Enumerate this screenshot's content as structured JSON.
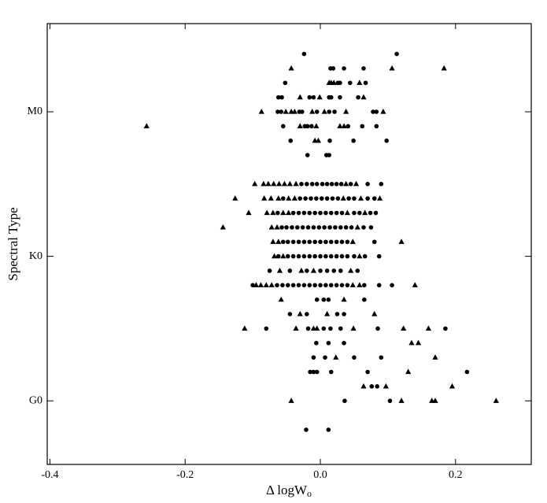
{
  "chart_data": {
    "type": "scatter",
    "x_label": "Δ logW",
    "x_label_subscript": "o",
    "y_label": "Spectral Type",
    "xlim": [
      -0.404,
      0.312
    ],
    "ylim": [
      -4.4,
      26.1
    ],
    "xticks": [
      -0.4,
      -0.2,
      {
        "value": 0,
        "label": "0.0"
      },
      0.2
    ],
    "yticks": [
      {
        "value": 0,
        "label": "G0"
      },
      {
        "value": 10,
        "label": "K0"
      },
      {
        "value": 20,
        "label": "M0"
      }
    ],
    "series": [
      {
        "marker": "circle",
        "color": "#000000",
        "x": [
          -0.024,
          0.113,
          0.015,
          0.019,
          0.035,
          0.064,
          -0.052,
          0.026,
          0.029,
          0.044,
          0.067,
          -0.062,
          -0.057,
          -0.016,
          -0.01,
          0.013,
          0.016,
          0.029,
          0.056,
          -0.063,
          -0.058,
          -0.031,
          -0.027,
          -0.005,
          0.013,
          0.021,
          0.078,
          0.083,
          -0.055,
          -0.023,
          -0.019,
          -0.013,
          0.041,
          0.062,
          0.083,
          -0.044,
          0.014,
          0.049,
          0.098,
          -0.019,
          0.009,
          0.013,
          -0.028,
          -0.02,
          -0.012,
          -0.005,
          0.003,
          0.01,
          0.017,
          0.024,
          0.031,
          0.045,
          0.07,
          0.09,
          -0.055,
          -0.03,
          -0.022,
          -0.014,
          -0.006,
          0.002,
          0.01,
          0.018,
          0.026,
          0.042,
          0.05,
          0.07,
          0.08,
          -0.063,
          -0.04,
          -0.032,
          -0.024,
          -0.016,
          -0.008,
          0,
          0.008,
          0.016,
          0.024,
          0.032,
          0.05,
          0.058,
          0.074,
          0.082,
          -0.057,
          -0.05,
          -0.042,
          -0.034,
          -0.026,
          -0.018,
          -0.01,
          -0.002,
          0.006,
          0.014,
          0.022,
          0.03,
          0.038,
          0.046,
          0.064,
          0.075,
          -0.055,
          -0.048,
          -0.04,
          -0.032,
          -0.024,
          -0.016,
          -0.008,
          0,
          0.008,
          0.016,
          0.024,
          0.032,
          0.04,
          0.08,
          -0.062,
          -0.048,
          -0.04,
          -0.032,
          -0.024,
          -0.016,
          -0.008,
          0,
          0.008,
          0.016,
          0.024,
          0.032,
          0.04,
          0.05,
          0.066,
          0.087,
          -0.075,
          -0.045,
          -0.02,
          0,
          0.01,
          0.02,
          0.03,
          0.055,
          -0.1,
          -0.064,
          -0.056,
          -0.048,
          -0.04,
          -0.032,
          -0.024,
          -0.016,
          -0.008,
          0,
          0.008,
          0.016,
          0.024,
          0.032,
          0.04,
          0.065,
          0.087,
          0.106,
          -0.005,
          0.005,
          0.012,
          0.065,
          -0.045,
          -0.02,
          0.025,
          0.035,
          -0.08,
          -0.018,
          0.005,
          0.015,
          0.03,
          0.085,
          0.185,
          -0.006,
          0.012,
          0.035,
          -0.01,
          0.007,
          0.05,
          0.09,
          -0.015,
          -0.01,
          -0.005,
          0.016,
          0.07,
          0.217,
          0.076,
          0.084,
          0.036,
          0.103,
          -0.021,
          0.012
        ],
        "y": [
          24,
          24,
          23,
          23,
          23,
          23,
          22,
          22,
          22,
          22,
          22,
          21,
          21,
          21,
          21,
          21,
          21,
          21,
          21,
          20,
          20,
          20,
          20,
          20,
          20,
          20,
          20,
          20,
          19,
          19,
          19,
          19,
          19,
          19,
          19,
          18,
          18,
          18,
          18,
          17,
          17,
          17,
          15,
          15,
          15,
          15,
          15,
          15,
          15,
          15,
          15,
          15,
          15,
          15,
          14,
          14,
          14,
          14,
          14,
          14,
          14,
          14,
          14,
          14,
          14,
          14,
          14,
          13,
          13,
          13,
          13,
          13,
          13,
          13,
          13,
          13,
          13,
          13,
          13,
          13,
          13,
          13,
          12,
          12,
          12,
          12,
          12,
          12,
          12,
          12,
          12,
          12,
          12,
          12,
          12,
          12,
          12,
          12,
          11,
          11,
          11,
          11,
          11,
          11,
          11,
          11,
          11,
          11,
          11,
          11,
          11,
          11,
          10,
          10,
          10,
          10,
          10,
          10,
          10,
          10,
          10,
          10,
          10,
          10,
          10,
          10,
          10,
          10,
          9,
          9,
          9,
          9,
          9,
          9,
          9,
          9,
          8,
          8,
          8,
          8,
          8,
          8,
          8,
          8,
          8,
          8,
          8,
          8,
          8,
          8,
          8,
          8,
          8,
          8,
          7,
          7,
          7,
          7,
          6,
          6,
          6,
          6,
          5,
          5,
          5,
          5,
          5,
          5,
          5,
          4,
          4,
          4,
          3,
          3,
          3,
          3,
          2,
          2,
          2,
          2,
          2,
          2,
          1,
          1,
          0,
          0,
          -2,
          -2
        ]
      },
      {
        "marker": "triangle",
        "color": "#000000",
        "x": [
          -0.043,
          0.106,
          0.183,
          0.013,
          0.016,
          0.02,
          0.058,
          -0.03,
          -0.001,
          0.064,
          -0.087,
          -0.051,
          -0.043,
          -0.038,
          -0.012,
          0.006,
          0.038,
          0.093,
          -0.257,
          -0.03,
          -0.006,
          0.029,
          0.035,
          -0.008,
          -0.003,
          -0.097,
          -0.084,
          -0.077,
          -0.069,
          -0.061,
          -0.053,
          -0.045,
          -0.036,
          0.038,
          0.053,
          -0.126,
          -0.083,
          -0.073,
          -0.062,
          -0.047,
          -0.038,
          0.034,
          0.06,
          0.088,
          -0.106,
          -0.079,
          -0.07,
          -0.055,
          -0.047,
          0.04,
          0.066,
          -0.144,
          -0.072,
          -0.064,
          0.055,
          -0.07,
          -0.062,
          0.048,
          0.12,
          -0.068,
          -0.055,
          0.058,
          -0.06,
          -0.028,
          -0.01,
          0.045,
          -0.095,
          -0.088,
          -0.08,
          -0.072,
          0.048,
          0.058,
          0.14,
          -0.058,
          0.035,
          -0.03,
          0.01,
          0.08,
          -0.112,
          -0.036,
          -0.01,
          -0.005,
          0.049,
          0.123,
          0.16,
          0.135,
          0.145,
          0.023,
          0.17,
          0.13,
          0.064,
          0.097,
          0.195,
          -0.043,
          0.12,
          0.165,
          0.17,
          0.26
        ],
        "y": [
          23,
          23,
          23,
          22,
          22,
          22,
          22,
          21,
          21,
          21,
          20,
          20,
          20,
          20,
          20,
          20,
          20,
          20,
          19,
          19,
          19,
          19,
          19,
          18,
          18,
          15,
          15,
          15,
          15,
          15,
          15,
          15,
          15,
          15,
          15,
          14,
          14,
          14,
          14,
          14,
          14,
          14,
          14,
          14,
          13,
          13,
          13,
          13,
          13,
          13,
          13,
          12,
          12,
          12,
          12,
          11,
          11,
          11,
          11,
          10,
          10,
          10,
          9,
          9,
          9,
          9,
          8,
          8,
          8,
          8,
          8,
          8,
          8,
          7,
          7,
          6,
          6,
          6,
          5,
          5,
          5,
          5,
          5,
          5,
          5,
          4,
          4,
          3,
          3,
          2,
          1,
          1,
          1,
          0,
          0,
          0,
          0,
          0
        ]
      }
    ]
  }
}
